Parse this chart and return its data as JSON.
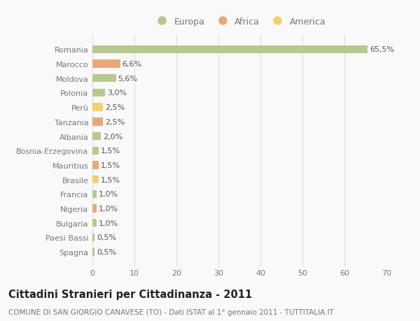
{
  "countries": [
    "Romania",
    "Marocco",
    "Moldova",
    "Polonia",
    "Perù",
    "Tanzania",
    "Albania",
    "Bosnia-Erzegovina",
    "Mauritius",
    "Brasile",
    "Francia",
    "Nigeria",
    "Bulgaria",
    "Paesi Bassi",
    "Spagna"
  ],
  "values": [
    65.5,
    6.6,
    5.6,
    3.0,
    2.5,
    2.5,
    2.0,
    1.5,
    1.5,
    1.5,
    1.0,
    1.0,
    1.0,
    0.5,
    0.5
  ],
  "labels": [
    "65,5%",
    "6,6%",
    "5,6%",
    "3,0%",
    "2,5%",
    "2,5%",
    "2,0%",
    "1,5%",
    "1,5%",
    "1,5%",
    "1,0%",
    "1,0%",
    "1,0%",
    "0,5%",
    "0,5%"
  ],
  "colors": [
    "#b5c98e",
    "#e8a87c",
    "#b5c98e",
    "#b5c98e",
    "#f0d070",
    "#e8a87c",
    "#b5c98e",
    "#b5c98e",
    "#e8a87c",
    "#f0d070",
    "#b5c98e",
    "#e8a87c",
    "#b5c98e",
    "#b5c98e",
    "#b5c98e"
  ],
  "legend": [
    {
      "label": "Europa",
      "color": "#b5c98e"
    },
    {
      "label": "Africa",
      "color": "#e8a87c"
    },
    {
      "label": "America",
      "color": "#f0d070"
    }
  ],
  "title": "Cittadini Stranieri per Cittadinanza - 2011",
  "subtitle": "COMUNE DI SAN GIORGIO CANAVESE (TO) - Dati ISTAT al 1° gennaio 2011 - TUTTITALIA.IT",
  "xlim": [
    0,
    70
  ],
  "xticks": [
    0,
    10,
    20,
    30,
    40,
    50,
    60,
    70
  ],
  "background_color": "#f9f9f9",
  "grid_color": "#dddddd",
  "bar_height": 0.55,
  "label_fontsize": 8,
  "tick_fontsize": 8,
  "title_fontsize": 10.5,
  "subtitle_fontsize": 7.5,
  "label_color": "#555555",
  "tick_color": "#777777"
}
